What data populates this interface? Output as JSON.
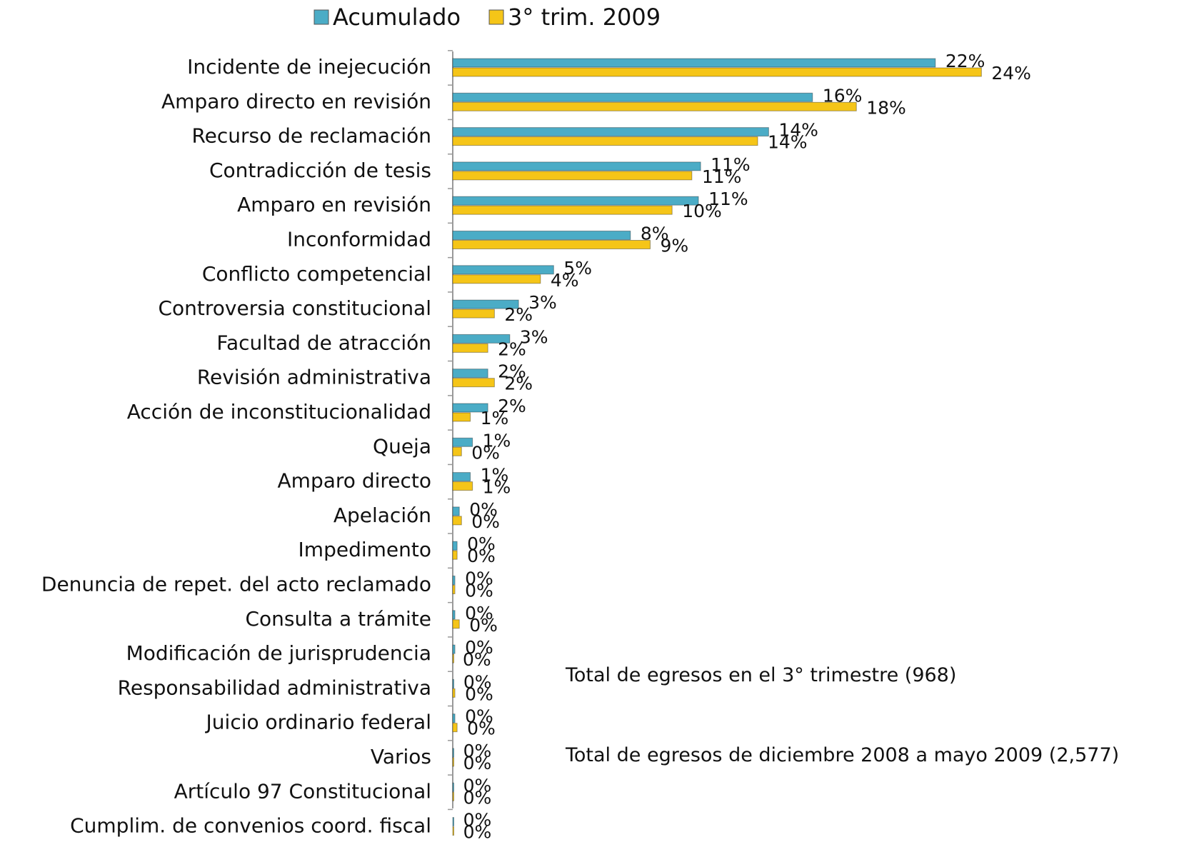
{
  "chart_data": {
    "type": "hbar",
    "categories": [
      "Incidente de inejecución",
      "Amparo directo en revisión",
      "Recurso de reclamación",
      "Contradicción de tesis",
      "Amparo en revisión",
      "Inconformidad",
      "Conflicto competencial",
      "Controversia constitucional",
      "Facultad de atracción",
      "Revisión administrativa",
      "Acción de inconstitucionalidad",
      "Queja",
      "Amparo directo",
      "Apelación",
      "Impedimento",
      "Denuncia de repet. del acto reclamado",
      "Consulta a trámite",
      "Modificación de jurisprudencia",
      "Responsabilidad administrativa",
      "Juicio ordinario federal",
      "Varios",
      "Artículo 97 Constitucional",
      "Cumplim. de convenios coord. fiscal"
    ],
    "series": [
      {
        "name": "Acumulado",
        "color": "#4bacc6",
        "values": [
          22.0,
          16.4,
          14.4,
          11.3,
          11.2,
          8.1,
          4.6,
          3.0,
          2.6,
          1.6,
          1.6,
          0.9,
          0.8,
          0.3,
          0.2,
          0.1,
          0.1,
          0.1,
          0.03,
          0.1,
          0.02,
          0.02,
          0.02
        ],
        "value_labels": [
          "22%",
          "16%",
          "14%",
          "11%",
          "11%",
          "8%",
          "5%",
          "3%",
          "3%",
          "2%",
          "2%",
          "1%",
          "1%",
          "0%",
          "0%",
          "0%",
          "0%",
          "0%",
          "0%",
          "0%",
          "0%",
          "0%",
          "0%"
        ]
      },
      {
        "name": "3° trim. 2009",
        "color": "#f5c518",
        "values": [
          24.1,
          18.4,
          13.9,
          10.9,
          10.0,
          9.0,
          4.0,
          1.9,
          1.6,
          1.9,
          0.8,
          0.4,
          0.9,
          0.4,
          0.2,
          0.1,
          0.3,
          0.0,
          0.1,
          0.2,
          0.02,
          0.02,
          0.02
        ],
        "value_labels": [
          "24%",
          "18%",
          "14%",
          "11%",
          "10%",
          "9%",
          "4%",
          "2%",
          "2%",
          "2%",
          "1%",
          "0%",
          "1%",
          "0%",
          "0%",
          "0%",
          "0%",
          "0%",
          "0%",
          "0%",
          "0%",
          "0%",
          "0%"
        ]
      }
    ],
    "xlim": [
      0,
      25
    ],
    "annotations": [
      "Total de egresos en el 3° trimestre (968)",
      "Total de egresos de diciembre 2008 a mayo 2009 (2,577)"
    ]
  }
}
